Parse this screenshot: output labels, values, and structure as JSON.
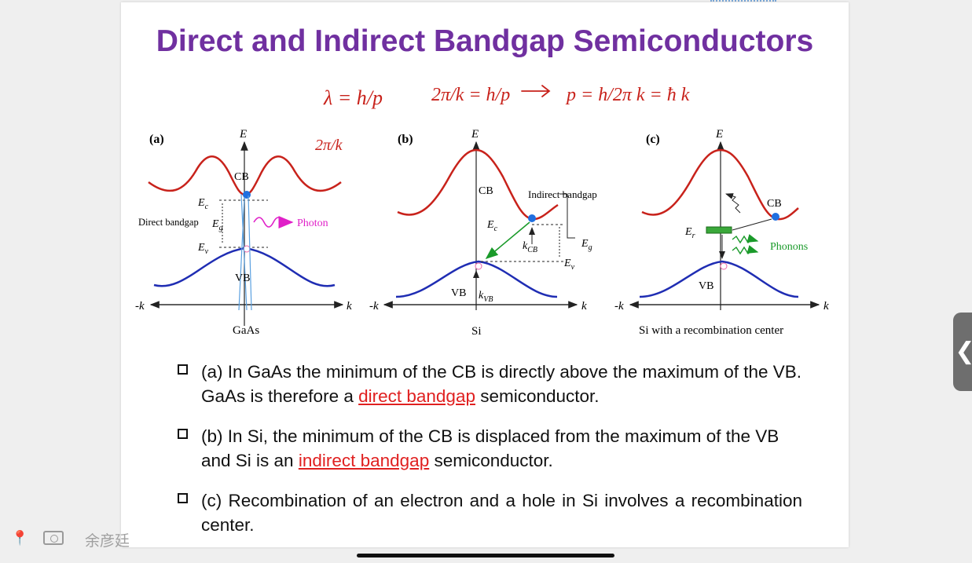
{
  "slide": {
    "title": "Direct and Indirect Bandgap Semiconductors"
  },
  "handwriting": {
    "eq1": "λ = h / p",
    "eq1_sub": "2π / k",
    "eq2": "2π/k = h/p",
    "eq3": "p = h/2π k = ħ k"
  },
  "diagrams": {
    "a": {
      "panel_label": "(a)",
      "axis_e": "E",
      "axis_neg_k": "-k",
      "axis_k": "k",
      "cb": "CB",
      "vb": "VB",
      "ec": "E",
      "ec_sub": "c",
      "eg": "E",
      "eg_sub": "g",
      "ev": "E",
      "ev_sub": "v",
      "direct_bandgap": "Direct bandgap",
      "photon": "Photon",
      "caption": "GaAs"
    },
    "b": {
      "panel_label": "(b)",
      "axis_e": "E",
      "axis_neg_k": "-k",
      "axis_k": "k",
      "cb": "CB",
      "vb": "VB",
      "indirect_bandgap": "Indirect bandgap",
      "ec": "E",
      "ec_sub": "c",
      "eg": "E",
      "eg_sub": "g",
      "ev": "E",
      "ev_sub": "v",
      "kcb": "k",
      "kcb_sub": "CB",
      "kvb": "k",
      "kvb_sub": "VB",
      "caption": "Si"
    },
    "c": {
      "panel_label": "(c)",
      "axis_e": "E",
      "axis_neg_k": "-k",
      "axis_k": "k",
      "cb": "CB",
      "vb": "VB",
      "er": "E",
      "er_sub": "r",
      "phonons": "Phonons",
      "caption": "Si with a recombination center"
    }
  },
  "bullets": [
    {
      "prefix": "(a) In GaAs the minimum of the CB is directly above the maximum of the VB. GaAs is therefore a ",
      "highlight": "direct bandgap",
      "suffix": " semiconductor."
    },
    {
      "prefix": "(b) In Si, the minimum of the CB is displaced from the maximum of the VB and Si is an ",
      "highlight": "indirect bandgap",
      "suffix": " semiconductor."
    },
    {
      "prefix": "(c) Recombination of an electron and a hole in Si involves a recombination center.",
      "highlight": "",
      "suffix": ""
    }
  ],
  "toolbar": {
    "user_name": "余彦廷",
    "pin_icon": "pin-icon",
    "slides_icon": "slides-icon"
  },
  "side_tab": {
    "label": "❮"
  },
  "colors": {
    "title": "#7030a0",
    "conduction_band": "#c8221b",
    "valence_band": "#1f2db3",
    "photon": "#e020c8",
    "phonon": "#1a9a2a",
    "highlight": "#e02020",
    "ink": "#c8221b"
  }
}
